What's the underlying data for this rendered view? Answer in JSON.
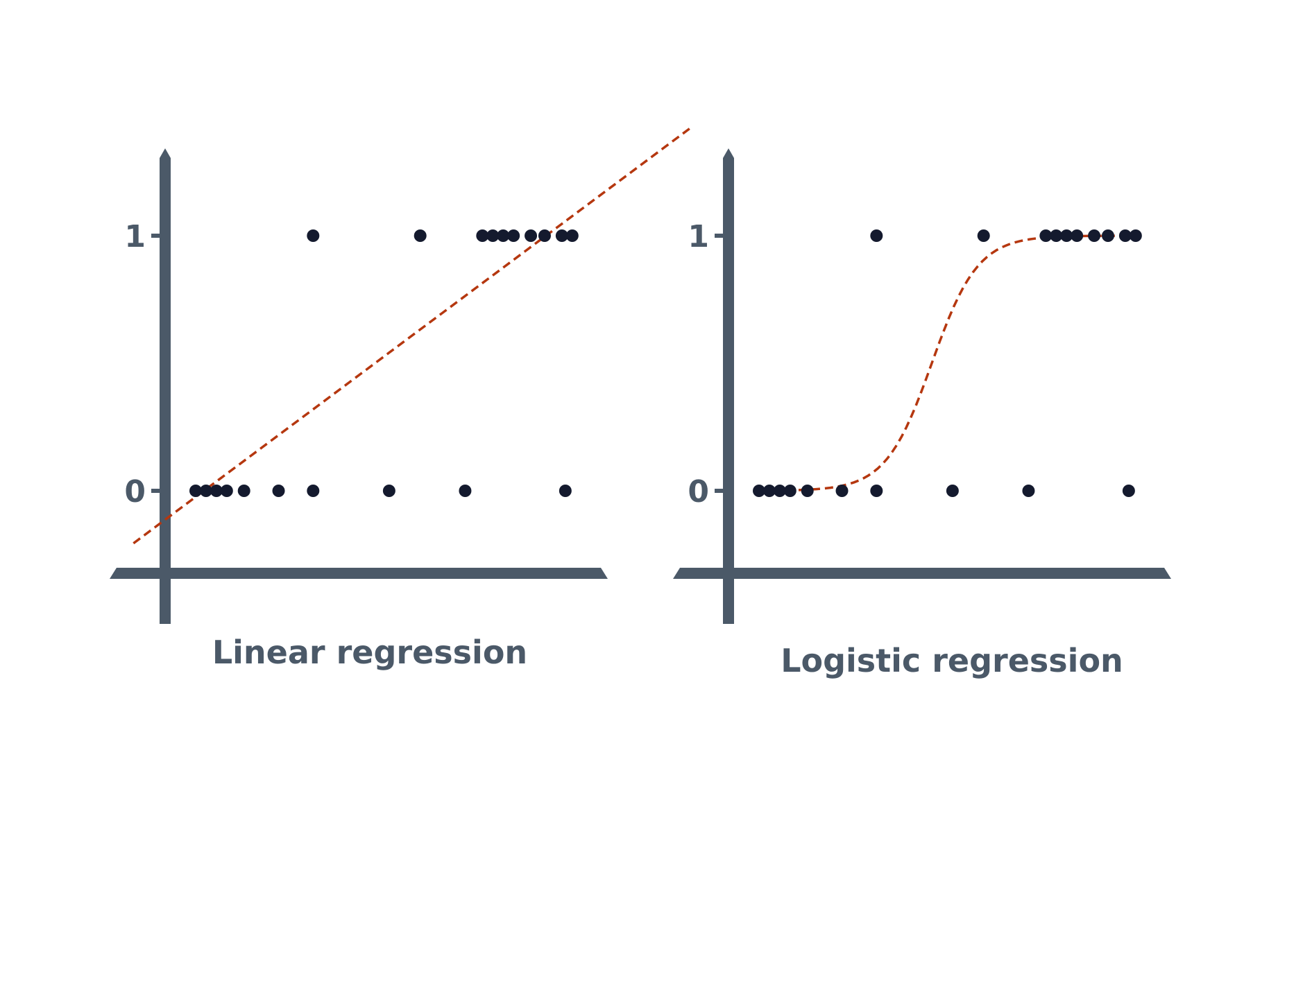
{
  "colors": {
    "axis": "#4b5968",
    "point": "#141a2e",
    "fit_line": "#b5370f",
    "text": "#4b5968"
  },
  "chart_data": [
    {
      "type": "scatter",
      "title": "Linear regression",
      "ylim": [
        -0.3,
        1.3
      ],
      "y_ticks": [
        {
          "value": 0,
          "label": "0"
        },
        {
          "value": 1,
          "label": "1"
        }
      ],
      "grid": false,
      "series": [
        {
          "values": [
            {
              "x": 1.0,
              "y": 0
            },
            {
              "x": 1.3,
              "y": 0
            },
            {
              "x": 1.6,
              "y": 0
            },
            {
              "x": 1.9,
              "y": 0
            },
            {
              "x": 2.4,
              "y": 0
            },
            {
              "x": 3.4,
              "y": 0
            },
            {
              "x": 4.4,
              "y": 0
            },
            {
              "x": 6.6,
              "y": 0
            },
            {
              "x": 8.8,
              "y": 0
            },
            {
              "x": 11.7,
              "y": 0
            },
            {
              "x": 4.4,
              "y": 1
            },
            {
              "x": 7.5,
              "y": 1
            },
            {
              "x": 9.3,
              "y": 1
            },
            {
              "x": 9.6,
              "y": 1
            },
            {
              "x": 9.9,
              "y": 1
            },
            {
              "x": 10.2,
              "y": 1
            },
            {
              "x": 10.7,
              "y": 1
            },
            {
              "x": 11.1,
              "y": 1
            },
            {
              "x": 11.6,
              "y": 1
            },
            {
              "x": 11.9,
              "y": 1
            }
          ]
        }
      ],
      "fit": {
        "kind": "linear",
        "slope": 0.101,
        "intercept": -0.125,
        "x_range": [
          -0.8,
          15.4
        ]
      }
    },
    {
      "type": "scatter",
      "title": "Logistic regression",
      "ylim": [
        -0.3,
        1.3
      ],
      "y_ticks": [
        {
          "value": 0,
          "label": "0"
        },
        {
          "value": 1,
          "label": "1"
        }
      ],
      "grid": false,
      "series": [
        {
          "values": [
            {
              "x": 1.0,
              "y": 0
            },
            {
              "x": 1.3,
              "y": 0
            },
            {
              "x": 1.6,
              "y": 0
            },
            {
              "x": 1.9,
              "y": 0
            },
            {
              "x": 2.4,
              "y": 0
            },
            {
              "x": 3.4,
              "y": 0
            },
            {
              "x": 4.4,
              "y": 0
            },
            {
              "x": 6.6,
              "y": 0
            },
            {
              "x": 8.8,
              "y": 0
            },
            {
              "x": 11.7,
              "y": 0
            },
            {
              "x": 4.4,
              "y": 1
            },
            {
              "x": 7.5,
              "y": 1
            },
            {
              "x": 9.3,
              "y": 1
            },
            {
              "x": 9.6,
              "y": 1
            },
            {
              "x": 9.9,
              "y": 1
            },
            {
              "x": 10.2,
              "y": 1
            },
            {
              "x": 10.7,
              "y": 1
            },
            {
              "x": 11.1,
              "y": 1
            },
            {
              "x": 11.6,
              "y": 1
            },
            {
              "x": 11.9,
              "y": 1
            }
          ]
        }
      ],
      "fit": {
        "kind": "logistic",
        "midpoint": 6.0,
        "steepness": 1.5,
        "x_range": [
          1.0,
          12.0
        ]
      }
    }
  ]
}
